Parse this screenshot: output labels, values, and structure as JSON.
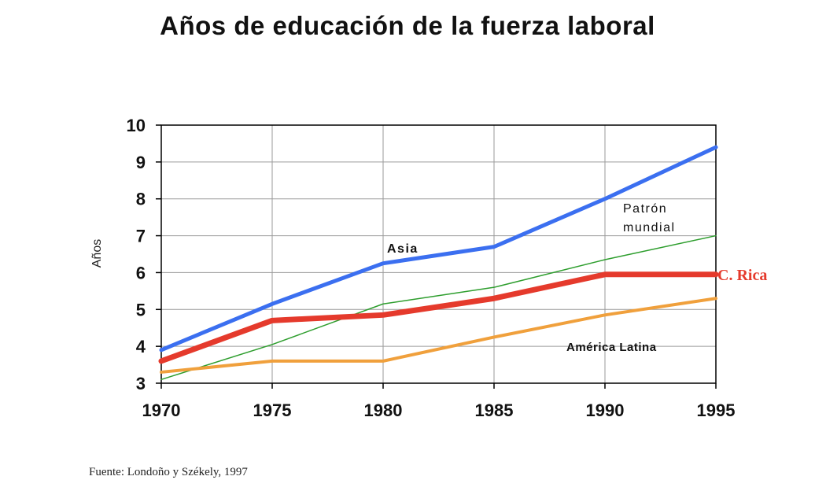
{
  "source": "Fuente: Londoño y Székely, 1997",
  "chart_data": {
    "type": "line",
    "title": "Años de educación de la fuerza laboral",
    "xlabel": "",
    "ylabel": "Años",
    "x": [
      1970,
      1975,
      1980,
      1985,
      1990,
      1995
    ],
    "xlim": [
      1970,
      1995
    ],
    "ylim": [
      3,
      10
    ],
    "xticks": [
      "1970",
      "1975",
      "1980",
      "1985",
      "1990",
      "1995"
    ],
    "yticks": [
      "3",
      "4",
      "5",
      "6",
      "7",
      "8",
      "9",
      "10"
    ],
    "grid": true,
    "series": [
      {
        "name": "Asia",
        "values": [
          3.9,
          5.15,
          6.25,
          6.7,
          8.0,
          9.4
        ],
        "color": "#3b6ff0"
      },
      {
        "name": "Patrón mundial",
        "values": [
          3.1,
          4.05,
          5.15,
          5.6,
          6.35,
          7.0
        ],
        "color": "#2e9e2e"
      },
      {
        "name": "C. Rica",
        "values": [
          3.6,
          4.7,
          4.85,
          5.3,
          5.95,
          5.95
        ],
        "color": "#e53a2c"
      },
      {
        "name": "América Latina",
        "values": [
          3.3,
          3.6,
          3.6,
          4.25,
          4.85,
          5.3
        ],
        "color": "#f0a03c"
      }
    ],
    "labels": {
      "asia": "Asia",
      "patron_line1": "Patrón",
      "patron_line2": "mundial",
      "crica": "C. Rica",
      "america_latina": "América Latina"
    }
  }
}
